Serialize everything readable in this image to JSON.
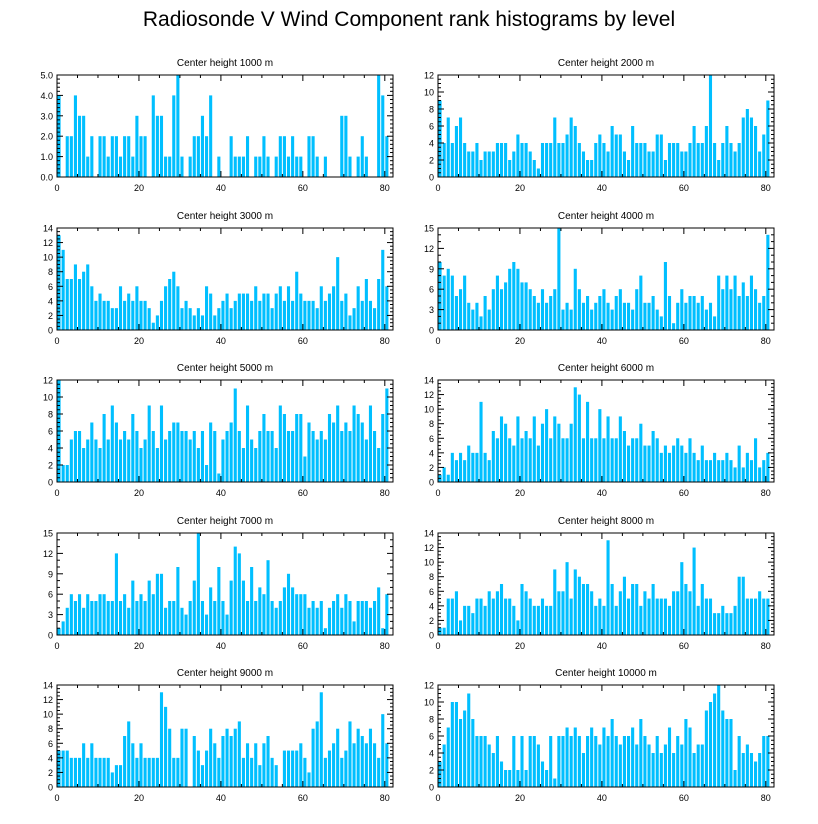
{
  "title": "Radiosonde V Wind Component rank histograms by level",
  "colors": {
    "bar": "#00bfff",
    "axis": "#000000",
    "background": "#ffffff"
  },
  "chart_data": [
    {
      "type": "bar",
      "title": "Center height 1000 m",
      "xlim": [
        0,
        82
      ],
      "ylim": [
        0,
        5
      ],
      "yticks": [
        0,
        1,
        2,
        3,
        4,
        5
      ],
      "ytick_labels": [
        "0.0",
        "1.0",
        "2.0",
        "3.0",
        "4.0",
        "5.0"
      ],
      "xticks": [
        0,
        20,
        40,
        60,
        80
      ],
      "xtick_labels": [
        "0",
        "20",
        "40",
        "60",
        "80"
      ],
      "values": [
        4,
        0,
        2,
        2,
        4,
        3,
        3,
        1,
        2,
        0,
        2,
        2,
        1,
        2,
        2,
        1,
        2,
        2,
        1,
        3,
        2,
        2,
        0,
        4,
        3,
        3,
        1,
        1,
        4,
        5,
        1,
        0,
        1,
        2,
        2,
        3,
        2,
        4,
        0,
        1,
        0,
        0,
        2,
        1,
        1,
        1,
        2,
        0,
        1,
        1,
        2,
        1,
        0,
        1,
        2,
        2,
        1,
        2,
        1,
        1,
        0,
        2,
        2,
        1,
        0,
        1,
        0,
        0,
        0,
        3,
        3,
        1,
        0,
        1,
        2,
        1,
        0,
        0,
        5,
        4,
        2
      ]
    },
    {
      "type": "bar",
      "title": "Center height 2000 m",
      "xlim": [
        0,
        82
      ],
      "ylim": [
        0,
        12
      ],
      "yticks": [
        0,
        2,
        4,
        6,
        8,
        10,
        12
      ],
      "ytick_labels": [
        "0",
        "2",
        "4",
        "6",
        "8",
        "10",
        "12"
      ],
      "xticks": [
        0,
        20,
        40,
        60,
        80
      ],
      "xtick_labels": [
        "0",
        "20",
        "40",
        "60",
        "80"
      ],
      "values": [
        9,
        4,
        7,
        4,
        6,
        7,
        4,
        3,
        3,
        4,
        2,
        3,
        3,
        3,
        4,
        4,
        4,
        2,
        3,
        5,
        4,
        4,
        3,
        2,
        1,
        4,
        4,
        4,
        7,
        4,
        4,
        5,
        7,
        6,
        4,
        3,
        2,
        2,
        4,
        5,
        4,
        3,
        6,
        5,
        5,
        3,
        2,
        6,
        4,
        4,
        4,
        3,
        3,
        5,
        5,
        2,
        4,
        4,
        4,
        3,
        3,
        4,
        6,
        4,
        4,
        6,
        12,
        4,
        2,
        4,
        6,
        4,
        3,
        4,
        7,
        8,
        7,
        6,
        3,
        5,
        9
      ]
    },
    {
      "type": "bar",
      "title": "Center height 3000 m",
      "xlim": [
        0,
        82
      ],
      "ylim": [
        0,
        14
      ],
      "yticks": [
        0,
        2,
        4,
        6,
        8,
        10,
        12,
        14
      ],
      "ytick_labels": [
        "0",
        "2",
        "4",
        "6",
        "8",
        "10",
        "12",
        "14"
      ],
      "xticks": [
        0,
        20,
        40,
        60,
        80
      ],
      "xtick_labels": [
        "0",
        "20",
        "40",
        "60",
        "80"
      ],
      "values": [
        13,
        11,
        7,
        7,
        9,
        7,
        8,
        9,
        6,
        4,
        5,
        4,
        4,
        3,
        3,
        6,
        4,
        5,
        4,
        6,
        4,
        4,
        3,
        1,
        2,
        4,
        6,
        7,
        8,
        6,
        3,
        4,
        3,
        2,
        3,
        2,
        6,
        5,
        2,
        3,
        4,
        5,
        3,
        4,
        5,
        5,
        5,
        4,
        6,
        4,
        5,
        5,
        3,
        5,
        6,
        4,
        6,
        4,
        8,
        5,
        4,
        4,
        4,
        3,
        6,
        4,
        5,
        6,
        10,
        4,
        5,
        2,
        3,
        6,
        4,
        7,
        4,
        3,
        7,
        11,
        6
      ]
    },
    {
      "type": "bar",
      "title": "Center height 4000 m",
      "xlim": [
        0,
        82
      ],
      "ylim": [
        0,
        15
      ],
      "yticks": [
        0,
        3,
        6,
        9,
        12,
        15
      ],
      "ytick_labels": [
        "0",
        "3",
        "6",
        "9",
        "12",
        "15"
      ],
      "xticks": [
        0,
        20,
        40,
        60,
        80
      ],
      "xtick_labels": [
        "0",
        "20",
        "40",
        "60",
        "80"
      ],
      "values": [
        10,
        8,
        9,
        8,
        5,
        6,
        8,
        4,
        3,
        4,
        2,
        5,
        3,
        6,
        8,
        6,
        7,
        9,
        10,
        9,
        7,
        7,
        6,
        5,
        4,
        6,
        4,
        5,
        6,
        15,
        3,
        4,
        3,
        9,
        6,
        4,
        5,
        3,
        4,
        5,
        6,
        4,
        3,
        5,
        6,
        4,
        4,
        3,
        6,
        8,
        4,
        4,
        5,
        3,
        2,
        10,
        5,
        1,
        4,
        6,
        4,
        5,
        5,
        4,
        5,
        3,
        4,
        2,
        8,
        6,
        8,
        6,
        8,
        5,
        7,
        5,
        8,
        6,
        4,
        5,
        14
      ]
    },
    {
      "type": "bar",
      "title": "Center height 5000 m",
      "xlim": [
        0,
        82
      ],
      "ylim": [
        0,
        12
      ],
      "yticks": [
        0,
        2,
        4,
        6,
        8,
        10,
        12
      ],
      "ytick_labels": [
        "0",
        "2",
        "4",
        "6",
        "8",
        "10",
        "12"
      ],
      "xticks": [
        0,
        20,
        40,
        60,
        80
      ],
      "xtick_labels": [
        "0",
        "20",
        "40",
        "60",
        "80"
      ],
      "values": [
        12,
        2,
        2,
        5,
        6,
        6,
        4,
        5,
        7,
        5,
        4,
        8,
        5,
        9,
        7,
        5,
        6,
        5,
        8,
        6,
        4,
        5,
        9,
        6,
        4,
        9,
        5,
        6,
        7,
        7,
        6,
        6,
        5,
        6,
        4,
        6,
        2,
        7,
        6,
        1,
        5,
        6,
        7,
        11,
        6,
        4,
        9,
        5,
        4,
        6,
        8,
        6,
        6,
        4,
        9,
        8,
        6,
        6,
        8,
        8,
        3,
        7,
        6,
        5,
        6,
        5,
        8,
        7,
        9,
        6,
        7,
        6,
        9,
        8,
        7,
        5,
        9,
        6,
        4,
        8,
        11
      ]
    },
    {
      "type": "bar",
      "title": "Center height 6000 m",
      "xlim": [
        0,
        82
      ],
      "ylim": [
        0,
        14
      ],
      "yticks": [
        0,
        2,
        4,
        6,
        8,
        10,
        12,
        14
      ],
      "ytick_labels": [
        "0",
        "2",
        "4",
        "6",
        "8",
        "10",
        "12",
        "14"
      ],
      "xticks": [
        0,
        20,
        40,
        60,
        80
      ],
      "xtick_labels": [
        "0",
        "20",
        "40",
        "60",
        "80"
      ],
      "values": [
        1,
        2,
        1,
        4,
        3,
        4,
        3,
        5,
        4,
        4,
        11,
        4,
        3,
        7,
        6,
        9,
        8,
        6,
        5,
        9,
        6,
        7,
        6,
        9,
        5,
        8,
        10,
        6,
        9,
        8,
        6,
        6,
        8,
        13,
        12,
        6,
        11,
        6,
        6,
        10,
        6,
        9,
        6,
        6,
        9,
        7,
        5,
        6,
        6,
        8,
        5,
        5,
        7,
        6,
        4,
        5,
        4,
        5,
        6,
        5,
        4,
        6,
        4,
        3,
        5,
        3,
        3,
        4,
        3,
        3,
        4,
        3,
        2,
        5,
        2,
        4,
        3,
        6,
        2,
        3,
        4
      ]
    },
    {
      "type": "bar",
      "title": "Center height 7000 m",
      "xlim": [
        0,
        82
      ],
      "ylim": [
        0,
        15
      ],
      "yticks": [
        0,
        3,
        6,
        9,
        12,
        15
      ],
      "ytick_labels": [
        "0",
        "3",
        "6",
        "9",
        "12",
        "15"
      ],
      "xticks": [
        0,
        20,
        40,
        60,
        80
      ],
      "xtick_labels": [
        "0",
        "20",
        "40",
        "60",
        "80"
      ],
      "values": [
        1,
        2,
        4,
        6,
        5,
        6,
        4,
        6,
        5,
        5,
        6,
        6,
        5,
        5,
        12,
        5,
        6,
        4,
        8,
        5,
        6,
        5,
        8,
        6,
        9,
        9,
        4,
        5,
        5,
        10,
        4,
        3,
        5,
        8,
        15,
        5,
        3,
        7,
        5,
        10,
        5,
        3,
        8,
        13,
        12,
        8,
        5,
        10,
        5,
        7,
        6,
        11,
        5,
        4,
        5,
        7,
        9,
        7,
        6,
        6,
        6,
        4,
        5,
        4,
        5,
        1,
        4,
        5,
        6,
        4,
        6,
        5,
        2,
        5,
        5,
        5,
        4,
        5,
        7,
        1,
        6
      ]
    },
    {
      "type": "bar",
      "title": "Center height 8000 m",
      "xlim": [
        0,
        82
      ],
      "ylim": [
        0,
        14
      ],
      "yticks": [
        0,
        2,
        4,
        6,
        8,
        10,
        12,
        14
      ],
      "ytick_labels": [
        "0",
        "2",
        "4",
        "6",
        "8",
        "10",
        "12",
        "14"
      ],
      "xticks": [
        0,
        20,
        40,
        60,
        80
      ],
      "xtick_labels": [
        "0",
        "20",
        "40",
        "60",
        "80"
      ],
      "values": [
        1,
        1,
        5,
        5,
        6,
        2,
        4,
        4,
        3,
        5,
        5,
        4,
        6,
        5,
        6,
        7,
        5,
        5,
        4,
        2,
        7,
        6,
        5,
        4,
        4,
        5,
        4,
        4,
        9,
        6,
        6,
        10,
        5,
        9,
        8,
        7,
        7,
        6,
        4,
        5,
        4,
        13,
        7,
        4,
        6,
        8,
        5,
        7,
        7,
        4,
        6,
        5,
        7,
        5,
        5,
        5,
        4,
        6,
        6,
        10,
        7,
        6,
        12,
        4,
        7,
        5,
        5,
        3,
        3,
        4,
        3,
        3,
        4,
        8,
        8,
        5,
        5,
        5,
        6,
        5,
        5
      ]
    },
    {
      "type": "bar",
      "title": "Center height 9000 m",
      "xlim": [
        0,
        82
      ],
      "ylim": [
        0,
        14
      ],
      "yticks": [
        0,
        2,
        4,
        6,
        8,
        10,
        12,
        14
      ],
      "ytick_labels": [
        "0",
        "2",
        "4",
        "6",
        "8",
        "10",
        "12",
        "14"
      ],
      "xticks": [
        0,
        20,
        40,
        60,
        80
      ],
      "xtick_labels": [
        "0",
        "20",
        "40",
        "60",
        "80"
      ],
      "values": [
        5,
        5,
        5,
        4,
        4,
        4,
        6,
        4,
        6,
        4,
        4,
        4,
        4,
        2,
        3,
        3,
        7,
        9,
        6,
        4,
        6,
        4,
        4,
        4,
        4,
        13,
        11,
        8,
        4,
        4,
        8,
        8,
        0,
        7,
        5,
        3,
        5,
        8,
        6,
        4,
        7,
        8,
        7,
        8,
        9,
        4,
        6,
        4,
        6,
        3,
        6,
        7,
        4,
        3,
        0,
        5,
        5,
        5,
        5,
        6,
        4,
        2,
        8,
        9,
        13,
        4,
        5,
        6,
        8,
        4,
        5,
        9,
        6,
        8,
        7,
        6,
        8,
        6,
        4,
        10,
        6
      ]
    },
    {
      "type": "bar",
      "title": "Center height 10000 m",
      "xlim": [
        0,
        82
      ],
      "ylim": [
        0,
        12
      ],
      "yticks": [
        0,
        2,
        4,
        6,
        8,
        10,
        12
      ],
      "ytick_labels": [
        "0",
        "2",
        "4",
        "6",
        "8",
        "10",
        "12"
      ],
      "xticks": [
        0,
        20,
        40,
        60,
        80
      ],
      "xtick_labels": [
        "0",
        "20",
        "40",
        "60",
        "80"
      ],
      "values": [
        3,
        5,
        7,
        10,
        10,
        8,
        9,
        11,
        8,
        6,
        6,
        6,
        5,
        4,
        6,
        3,
        2,
        2,
        6,
        2,
        6,
        2,
        6,
        6,
        5,
        3,
        2,
        6,
        1,
        6,
        6,
        7,
        6,
        7,
        6,
        4,
        6,
        7,
        6,
        5,
        7,
        6,
        8,
        6,
        5,
        6,
        6,
        7,
        5,
        8,
        6,
        5,
        4,
        6,
        4,
        5,
        7,
        4,
        6,
        5,
        8,
        7,
        4,
        5,
        5,
        9,
        10,
        11,
        12,
        9,
        8,
        8,
        2,
        6,
        4,
        5,
        4,
        3,
        4,
        6,
        6
      ]
    }
  ]
}
